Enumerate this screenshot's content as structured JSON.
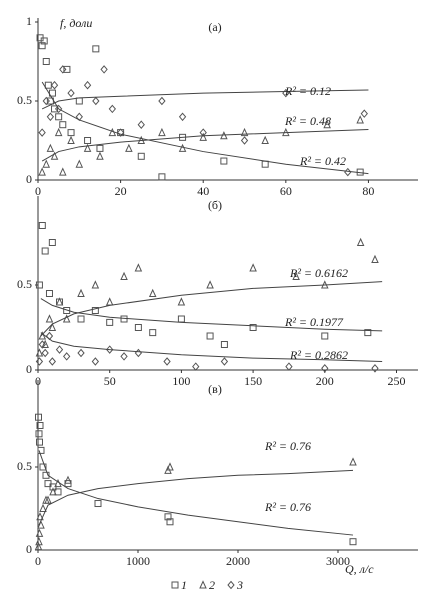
{
  "chart_data": [
    {
      "type": "scatter",
      "label": "(а)",
      "y_label": "f, доли",
      "xlim": [
        0,
        92
      ],
      "ylim": [
        0,
        1
      ],
      "xticks": [
        0,
        20,
        40,
        60,
        80
      ],
      "yticks": [
        0,
        0.5,
        1
      ],
      "series": [
        {
          "name": "1",
          "marker": "square",
          "color": "#555",
          "x": [
            0.5,
            1,
            1.5,
            2,
            2.5,
            3,
            3.5,
            4,
            5,
            6,
            7,
            8,
            10,
            12,
            14,
            15,
            20,
            25,
            30,
            35,
            45,
            55,
            78
          ],
          "y": [
            0.9,
            0.85,
            0.88,
            0.75,
            0.6,
            0.5,
            0.55,
            0.45,
            0.4,
            0.35,
            0.7,
            0.3,
            0.5,
            0.25,
            0.83,
            0.2,
            0.3,
            0.15,
            0.02,
            0.27,
            0.12,
            0.1,
            0.05
          ]
        },
        {
          "name": "2",
          "marker": "triangle",
          "color": "#555",
          "x": [
            1,
            2,
            3,
            4,
            5,
            6,
            8,
            10,
            12,
            15,
            18,
            22,
            25,
            30,
            35,
            40,
            45,
            50,
            55,
            60,
            70,
            78
          ],
          "y": [
            0.05,
            0.1,
            0.2,
            0.15,
            0.3,
            0.05,
            0.25,
            0.1,
            0.2,
            0.15,
            0.3,
            0.2,
            0.25,
            0.3,
            0.2,
            0.27,
            0.28,
            0.3,
            0.25,
            0.3,
            0.35,
            0.38
          ]
        },
        {
          "name": "3",
          "marker": "diamond",
          "color": "#555",
          "x": [
            1,
            2,
            3,
            4,
            5,
            6,
            8,
            10,
            12,
            14,
            16,
            18,
            20,
            25,
            30,
            35,
            40,
            50,
            60,
            75,
            79
          ],
          "y": [
            0.3,
            0.5,
            0.4,
            0.6,
            0.45,
            0.7,
            0.55,
            0.4,
            0.6,
            0.5,
            0.7,
            0.45,
            0.3,
            0.35,
            0.5,
            0.4,
            0.3,
            0.25,
            0.55,
            0.05,
            0.42
          ]
        }
      ],
      "trendlines": [
        {
          "x": [
            1,
            5,
            10,
            20,
            40,
            60,
            80
          ],
          "y": [
            0.62,
            0.45,
            0.38,
            0.29,
            0.18,
            0.1,
            0.04
          ]
        },
        {
          "x": [
            1,
            5,
            10,
            20,
            40,
            60,
            80
          ],
          "y": [
            0.12,
            0.18,
            0.21,
            0.24,
            0.28,
            0.3,
            0.32
          ]
        },
        {
          "x": [
            1,
            5,
            10,
            20,
            40,
            60,
            80
          ],
          "y": [
            0.45,
            0.5,
            0.52,
            0.53,
            0.55,
            0.56,
            0.57
          ]
        }
      ],
      "annotations": [
        "R² = 0.12",
        "R² = 0.48",
        "R² = 0.42"
      ]
    },
    {
      "type": "scatter",
      "label": "(б)",
      "xlim": [
        0,
        265
      ],
      "ylim": [
        0,
        1
      ],
      "xticks": [
        0,
        50,
        100,
        150,
        200,
        250
      ],
      "yticks": [
        0,
        0.5
      ],
      "series": [
        {
          "marker": "square",
          "color": "#555",
          "x": [
            1,
            3,
            5,
            8,
            10,
            15,
            20,
            30,
            40,
            50,
            60,
            70,
            80,
            100,
            120,
            130,
            150,
            200,
            230
          ],
          "y": [
            0.5,
            0.85,
            0.7,
            0.45,
            0.75,
            0.4,
            0.35,
            0.3,
            0.35,
            0.28,
            0.3,
            0.25,
            0.22,
            0.3,
            0.2,
            0.15,
            0.25,
            0.2,
            0.22
          ]
        },
        {
          "marker": "triangle",
          "color": "#555",
          "x": [
            1,
            3,
            5,
            8,
            10,
            15,
            20,
            30,
            40,
            50,
            60,
            70,
            80,
            100,
            120,
            150,
            180,
            200,
            225,
            235
          ],
          "y": [
            0.1,
            0.2,
            0.15,
            0.3,
            0.25,
            0.4,
            0.3,
            0.45,
            0.5,
            0.4,
            0.55,
            0.6,
            0.45,
            0.4,
            0.5,
            0.6,
            0.55,
            0.5,
            0.75,
            0.65
          ]
        },
        {
          "marker": "diamond",
          "color": "#555",
          "x": [
            1,
            3,
            5,
            8,
            10,
            15,
            20,
            30,
            40,
            50,
            60,
            70,
            90,
            110,
            130,
            175,
            200,
            235
          ],
          "y": [
            0.05,
            0.15,
            0.1,
            0.2,
            0.05,
            0.12,
            0.08,
            0.1,
            0.05,
            0.12,
            0.08,
            0.1,
            0.05,
            0.02,
            0.05,
            0.02,
            0.01,
            0.01
          ]
        }
      ],
      "trendlines": [
        {
          "x": [
            2,
            10,
            25,
            50,
            100,
            150,
            200,
            240
          ],
          "y": [
            0.42,
            0.38,
            0.34,
            0.31,
            0.28,
            0.26,
            0.24,
            0.23
          ]
        },
        {
          "x": [
            2,
            10,
            25,
            50,
            100,
            150,
            200,
            240
          ],
          "y": [
            0.2,
            0.27,
            0.33,
            0.38,
            0.44,
            0.48,
            0.5,
            0.52
          ]
        },
        {
          "x": [
            2,
            10,
            25,
            50,
            100,
            150,
            200,
            240
          ],
          "y": [
            0.22,
            0.17,
            0.14,
            0.12,
            0.09,
            0.07,
            0.06,
            0.05
          ]
        }
      ],
      "annotations": [
        "R² = 0.6162",
        "R² = 0.1977",
        "R² = 0.2862"
      ]
    },
    {
      "type": "scatter",
      "label": "(в)",
      "x_label": "Q, л/с",
      "xlim": [
        0,
        3800
      ],
      "ylim": [
        0,
        1
      ],
      "xticks": [
        0,
        1000,
        2000,
        3000
      ],
      "yticks": [
        0,
        0.5
      ],
      "series": [
        {
          "marker": "square",
          "color": "#555",
          "x": [
            5,
            10,
            15,
            20,
            30,
            50,
            80,
            100,
            150,
            200,
            300,
            600,
            1300,
            1320,
            3150
          ],
          "y": [
            0.8,
            0.7,
            0.65,
            0.75,
            0.6,
            0.5,
            0.45,
            0.4,
            0.38,
            0.35,
            0.4,
            0.28,
            0.2,
            0.17,
            0.05
          ]
        },
        {
          "marker": "triangle",
          "color": "#555",
          "x": [
            5,
            10,
            15,
            20,
            30,
            50,
            80,
            100,
            150,
            200,
            300,
            1300,
            1320,
            3150
          ],
          "y": [
            0.02,
            0.05,
            0.1,
            0.2,
            0.15,
            0.25,
            0.3,
            0.3,
            0.35,
            0.4,
            0.42,
            0.48,
            0.5,
            0.53
          ]
        }
      ],
      "trendlines": [
        {
          "x": [
            10,
            100,
            300,
            600,
            1000,
            1500,
            2000,
            2500,
            3150
          ],
          "y": [
            0.6,
            0.45,
            0.37,
            0.31,
            0.26,
            0.21,
            0.17,
            0.13,
            0.09
          ]
        },
        {
          "x": [
            10,
            100,
            300,
            600,
            1000,
            1500,
            2000,
            2500,
            3150
          ],
          "y": [
            0.15,
            0.27,
            0.33,
            0.37,
            0.4,
            0.43,
            0.45,
            0.46,
            0.48
          ]
        }
      ],
      "annotations": [
        "R² = 0.76",
        "R² = 0.76"
      ]
    }
  ]
}
